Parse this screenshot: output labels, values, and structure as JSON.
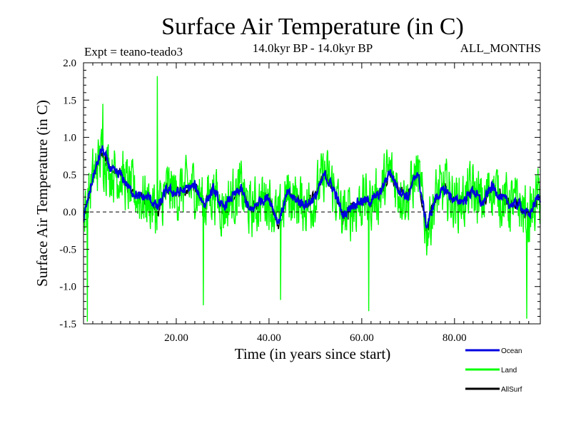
{
  "chart_data": {
    "type": "line",
    "title": "Surface Air Temperature (in C)",
    "subtitle": "14.0kyr BP - 14.0kyr BP",
    "expt_label": "Expt = teano-teado3",
    "months_label": "ALL_MONTHS",
    "xlabel": "Time (in years since start)",
    "ylabel": "Surface Air Temperature (in C)",
    "xlim": [
      0,
      98.5
    ],
    "ylim": [
      -1.5,
      2.0
    ],
    "x_ticks": [
      20,
      40,
      60,
      80
    ],
    "x_tick_labels": [
      "20.00",
      "40.00",
      "60.00",
      "80.00"
    ],
    "y_ticks": [
      -1.5,
      -1.0,
      -0.5,
      0.0,
      0.5,
      1.0,
      1.5,
      2.0
    ],
    "y_tick_labels": [
      "-1.5",
      "-1.0",
      "-0.5",
      "0.0",
      "0.5",
      "1.0",
      "1.5",
      "2.0"
    ],
    "zero_line": {
      "y": 0.0,
      "style": "dashed"
    },
    "samples_per_year": 12,
    "series": [
      {
        "name": "AllSurf",
        "color": "#000000",
        "anchor_years": [
          0,
          2,
          4,
          6,
          8,
          10,
          12,
          14,
          16,
          18,
          20,
          22,
          24,
          26,
          28,
          30,
          32,
          34,
          36,
          38,
          40,
          42,
          44,
          46,
          48,
          50,
          52,
          54,
          56,
          58,
          60,
          62,
          64,
          66,
          68,
          70,
          72,
          74,
          76,
          78,
          80,
          82,
          84,
          86,
          88,
          90,
          92,
          94,
          96,
          98
        ],
        "anchor_values": [
          -0.15,
          0.45,
          0.8,
          0.55,
          0.5,
          0.3,
          0.2,
          0.15,
          0.0,
          0.3,
          0.25,
          0.3,
          0.35,
          0.1,
          0.3,
          0.05,
          0.2,
          0.3,
          0.0,
          0.15,
          0.2,
          -0.15,
          0.25,
          0.15,
          0.1,
          0.2,
          0.5,
          0.3,
          -0.1,
          0.05,
          0.15,
          0.15,
          0.25,
          0.55,
          0.3,
          0.2,
          0.55,
          -0.25,
          0.2,
          0.3,
          0.15,
          0.15,
          0.3,
          0.1,
          0.35,
          0.2,
          0.1,
          0.1,
          -0.1,
          0.2
        ],
        "noise_amplitude": 0.12
      },
      {
        "name": "Ocean",
        "color": "#0000e0",
        "anchor_years": [
          0,
          2,
          4,
          6,
          8,
          10,
          12,
          14,
          16,
          18,
          20,
          22,
          24,
          26,
          28,
          30,
          32,
          34,
          36,
          38,
          40,
          42,
          44,
          46,
          48,
          50,
          52,
          54,
          56,
          58,
          60,
          62,
          64,
          66,
          68,
          70,
          72,
          74,
          76,
          78,
          80,
          82,
          84,
          86,
          88,
          90,
          92,
          94,
          96,
          98
        ],
        "anchor_values": [
          -0.1,
          0.45,
          0.85,
          0.55,
          0.5,
          0.3,
          0.2,
          0.2,
          0.05,
          0.3,
          0.25,
          0.3,
          0.35,
          0.1,
          0.3,
          0.05,
          0.2,
          0.3,
          0.0,
          0.15,
          0.2,
          -0.15,
          0.25,
          0.15,
          0.1,
          0.2,
          0.5,
          0.3,
          -0.05,
          0.1,
          0.15,
          0.15,
          0.25,
          0.55,
          0.3,
          0.2,
          0.55,
          -0.2,
          0.2,
          0.3,
          0.15,
          0.15,
          0.3,
          0.1,
          0.35,
          0.2,
          0.1,
          0.1,
          -0.05,
          0.2
        ],
        "noise_amplitude": 0.1
      },
      {
        "name": "Land",
        "color": "#00ff00",
        "anchor_years": [
          0,
          2,
          4,
          6,
          8,
          10,
          12,
          14,
          16,
          18,
          20,
          22,
          24,
          26,
          28,
          30,
          32,
          34,
          36,
          38,
          40,
          42,
          44,
          46,
          48,
          50,
          52,
          54,
          56,
          58,
          60,
          62,
          64,
          66,
          68,
          70,
          72,
          74,
          76,
          78,
          80,
          82,
          84,
          86,
          88,
          90,
          92,
          94,
          96,
          98
        ],
        "anchor_values": [
          -0.1,
          0.45,
          0.8,
          0.55,
          0.5,
          0.3,
          0.2,
          0.15,
          0.0,
          0.3,
          0.25,
          0.3,
          0.35,
          0.1,
          0.3,
          0.05,
          0.2,
          0.3,
          0.0,
          0.15,
          0.2,
          -0.15,
          0.25,
          0.15,
          0.1,
          0.2,
          0.5,
          0.3,
          -0.1,
          0.05,
          0.15,
          0.15,
          0.25,
          0.55,
          0.3,
          0.2,
          0.55,
          -0.25,
          0.2,
          0.3,
          0.15,
          0.15,
          0.3,
          0.1,
          0.35,
          0.2,
          0.1,
          0.1,
          -0.1,
          0.2
        ],
        "noise_amplitude": 0.55,
        "peaks": [
          {
            "x": 15.9,
            "y": 1.82
          },
          {
            "x": 4.2,
            "y": 1.45
          },
          {
            "x": 0.8,
            "y": -1.47
          },
          {
            "x": 61.5,
            "y": -1.33
          },
          {
            "x": 95.6,
            "y": -1.43
          },
          {
            "x": 25.8,
            "y": -1.25
          },
          {
            "x": 42.5,
            "y": -1.18
          }
        ]
      }
    ],
    "legend": {
      "placement": "bottom-right",
      "entries": [
        {
          "label": "Ocean",
          "color": "#0000e0"
        },
        {
          "label": "Land",
          "color": "#00ff00"
        },
        {
          "label": "AllSurf",
          "color": "#000000"
        }
      ]
    }
  }
}
